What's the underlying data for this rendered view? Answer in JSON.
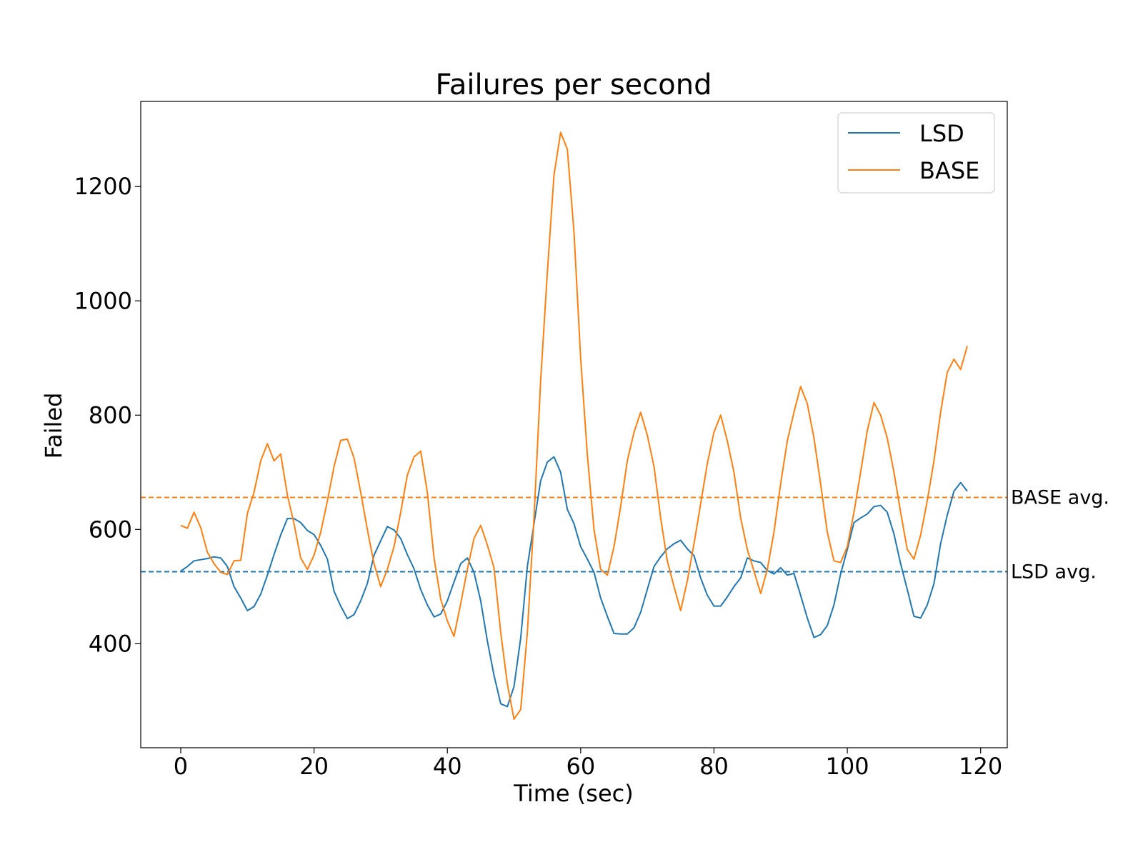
{
  "chart_data": {
    "type": "line",
    "title": "Failures per second",
    "xlabel": "Time (sec)",
    "ylabel": "Failed",
    "xlim": [
      -6,
      124
    ],
    "ylim": [
      218,
      1349
    ],
    "xticks": [
      0,
      20,
      40,
      60,
      80,
      100,
      120
    ],
    "yticks": [
      400,
      600,
      800,
      1000,
      1200
    ],
    "grid": false,
    "legend": "top-right",
    "series": [
      {
        "name": "LSD",
        "color": "#1f77b4",
        "x": [
          0,
          1,
          2,
          3,
          4,
          5,
          6,
          7,
          8,
          9,
          10,
          11,
          12,
          13,
          14,
          15,
          16,
          17,
          18,
          19,
          20,
          21,
          22,
          23,
          24,
          25,
          26,
          27,
          28,
          29,
          30,
          31,
          32,
          33,
          34,
          35,
          36,
          37,
          38,
          39,
          40,
          41,
          42,
          43,
          44,
          45,
          46,
          47,
          48,
          49,
          50,
          51,
          52,
          53,
          54,
          55,
          56,
          57,
          58,
          59,
          60,
          61,
          62,
          63,
          64,
          65,
          66,
          67,
          68,
          69,
          70,
          71,
          72,
          73,
          74,
          75,
          76,
          77,
          78,
          79,
          80,
          81,
          82,
          83,
          84,
          85,
          86,
          87,
          88,
          89,
          90,
          91,
          92,
          93,
          94,
          95,
          96,
          97,
          98,
          99,
          100,
          101,
          102,
          103,
          104,
          105,
          106,
          107,
          108,
          109,
          110,
          111,
          112,
          113,
          114,
          115,
          116,
          117,
          118
        ],
        "y": [
          527,
          535,
          545,
          547,
          549,
          552,
          550,
          535,
          500,
          480,
          458,
          465,
          487,
          520,
          556,
          590,
          619,
          619,
          612,
          598,
          591,
          572,
          548,
          492,
          466,
          444,
          451,
          475,
          505,
          555,
          580,
          605,
          599,
          584,
          556,
          531,
          495,
          468,
          447,
          452,
          475,
          508,
          540,
          550,
          525,
          475,
          405,
          345,
          295,
          290,
          325,
          410,
          535,
          610,
          685,
          718,
          727,
          700,
          635,
          610,
          570,
          548,
          525,
          480,
          448,
          418,
          417,
          417,
          428,
          455,
          495,
          535,
          552,
          566,
          575,
          581,
          566,
          554,
          515,
          485,
          466,
          466,
          482,
          500,
          515,
          550,
          545,
          542,
          528,
          522,
          533,
          520,
          523,
          485,
          445,
          411,
          416,
          432,
          468,
          522,
          565,
          612,
          620,
          627,
          640,
          642,
          630,
          592,
          540,
          495,
          448,
          445,
          468,
          505,
          575,
          625,
          667,
          682,
          667
        ],
        "avg": 526,
        "avg_label": "LSD avg."
      },
      {
        "name": "BASE",
        "color": "#ff7f0e",
        "x": [
          0,
          1,
          2,
          3,
          4,
          5,
          6,
          7,
          8,
          9,
          10,
          11,
          12,
          13,
          14,
          15,
          16,
          17,
          18,
          19,
          20,
          21,
          22,
          23,
          24,
          25,
          26,
          27,
          28,
          29,
          30,
          31,
          32,
          33,
          34,
          35,
          36,
          37,
          38,
          39,
          40,
          41,
          42,
          43,
          44,
          45,
          46,
          47,
          48,
          49,
          50,
          51,
          52,
          53,
          54,
          55,
          56,
          57,
          58,
          59,
          60,
          61,
          62,
          63,
          64,
          65,
          66,
          67,
          68,
          69,
          70,
          71,
          72,
          73,
          74,
          75,
          76,
          77,
          78,
          79,
          80,
          81,
          82,
          83,
          84,
          85,
          86,
          87,
          88,
          89,
          90,
          91,
          92,
          93,
          94,
          95,
          96,
          97,
          98,
          99,
          100,
          101,
          102,
          103,
          104,
          105,
          106,
          107,
          108,
          109,
          110,
          111,
          112,
          113,
          114,
          115,
          116,
          117,
          118
        ],
        "y": [
          607,
          602,
          630,
          603,
          560,
          540,
          525,
          521,
          545,
          546,
          628,
          665,
          720,
          750,
          720,
          732,
          660,
          610,
          550,
          530,
          555,
          595,
          650,
          710,
          756,
          758,
          725,
          665,
          600,
          540,
          500,
          530,
          570,
          630,
          695,
          727,
          737,
          665,
          550,
          478,
          440,
          413,
          470,
          530,
          584,
          607,
          573,
          533,
          420,
          330,
          268,
          285,
          420,
          620,
          860,
          1050,
          1220,
          1295,
          1265,
          1120,
          900,
          730,
          600,
          530,
          520,
          570,
          640,
          720,
          770,
          805,
          765,
          710,
          620,
          545,
          500,
          458,
          510,
          575,
          645,
          715,
          770,
          800,
          755,
          700,
          620,
          565,
          527,
          488,
          530,
          595,
          680,
          755,
          805,
          850,
          820,
          760,
          680,
          595,
          545,
          542,
          570,
          630,
          700,
          773,
          822,
          800,
          760,
          700,
          630,
          565,
          548,
          590,
          650,
          720,
          805,
          875,
          898,
          880,
          921
        ],
        "avg": 656,
        "avg_label": "BASE avg."
      }
    ]
  }
}
